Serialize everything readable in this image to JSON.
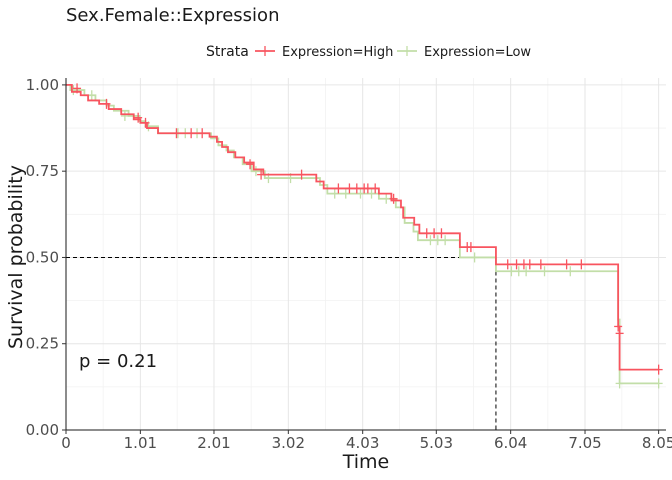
{
  "chart_data": {
    "type": "line",
    "subtype": "kaplan-meier step",
    "title": "Sex.Female::Expression",
    "xlabel": "Time",
    "ylabel": "Survival probability",
    "xlim": [
      0,
      8.15
    ],
    "ylim": [
      0,
      1.02
    ],
    "x_ticks": [
      0,
      1.01,
      2.01,
      3.02,
      4.03,
      5.03,
      6.04,
      7.05,
      8.05
    ],
    "x_tick_labels": [
      "0",
      "1.01",
      "2.01",
      "3.02",
      "4.03",
      "5.03",
      "6.04",
      "7.05",
      "8.05"
    ],
    "y_ticks": [
      0,
      0.25,
      0.5,
      0.75,
      1.0
    ],
    "y_tick_labels": [
      "0.00",
      "0.25",
      "0.50",
      "0.75",
      "1.00"
    ],
    "grid": true,
    "legend": {
      "title": "Strata",
      "position": "top"
    },
    "annotation": "p = 0.21",
    "median_reference": {
      "y": 0.5,
      "x": 5.84
    },
    "series": [
      {
        "name": "Expression=High",
        "color": "#f8545f",
        "steps": [
          [
            0,
            1.0
          ],
          [
            0.08,
            0.98
          ],
          [
            0.2,
            0.97
          ],
          [
            0.3,
            0.955
          ],
          [
            0.45,
            0.945
          ],
          [
            0.58,
            0.93
          ],
          [
            0.75,
            0.915
          ],
          [
            0.92,
            0.9
          ],
          [
            1.01,
            0.89
          ],
          [
            1.1,
            0.875
          ],
          [
            1.25,
            0.86
          ],
          [
            1.95,
            0.85
          ],
          [
            2.05,
            0.835
          ],
          [
            2.12,
            0.82
          ],
          [
            2.2,
            0.805
          ],
          [
            2.3,
            0.79
          ],
          [
            2.42,
            0.775
          ],
          [
            2.55,
            0.755
          ],
          [
            2.68,
            0.74
          ],
          [
            3.4,
            0.72
          ],
          [
            3.5,
            0.7
          ],
          [
            4.25,
            0.685
          ],
          [
            4.42,
            0.665
          ],
          [
            4.55,
            0.645
          ],
          [
            4.58,
            0.615
          ],
          [
            4.73,
            0.595
          ],
          [
            4.8,
            0.57
          ],
          [
            5.35,
            0.53
          ],
          [
            5.84,
            0.48
          ],
          [
            7.5,
            0.3
          ],
          [
            7.52,
            0.175
          ],
          [
            8.05,
            0.175
          ]
        ],
        "censor": [
          [
            0.15,
            0.99
          ],
          [
            0.55,
            0.945
          ],
          [
            0.98,
            0.905
          ],
          [
            1.08,
            0.89
          ],
          [
            1.5,
            0.86
          ],
          [
            1.7,
            0.86
          ],
          [
            1.85,
            0.86
          ],
          [
            2.5,
            0.77
          ],
          [
            2.65,
            0.74
          ],
          [
            3.2,
            0.74
          ],
          [
            3.7,
            0.7
          ],
          [
            3.85,
            0.7
          ],
          [
            3.95,
            0.7
          ],
          [
            4.05,
            0.7
          ],
          [
            4.1,
            0.7
          ],
          [
            4.2,
            0.7
          ],
          [
            4.45,
            0.67
          ],
          [
            4.9,
            0.57
          ],
          [
            5.0,
            0.57
          ],
          [
            5.1,
            0.57
          ],
          [
            5.45,
            0.53
          ],
          [
            5.5,
            0.53
          ],
          [
            6.0,
            0.48
          ],
          [
            6.12,
            0.48
          ],
          [
            6.22,
            0.48
          ],
          [
            6.3,
            0.48
          ],
          [
            6.45,
            0.48
          ],
          [
            6.8,
            0.48
          ],
          [
            7.0,
            0.48
          ],
          [
            7.5,
            0.3
          ],
          [
            7.52,
            0.28
          ],
          [
            8.05,
            0.175
          ]
        ]
      },
      {
        "name": "Expression=Low",
        "color": "#c2dea8",
        "steps": [
          [
            0,
            1.0
          ],
          [
            0.06,
            0.985
          ],
          [
            0.25,
            0.97
          ],
          [
            0.4,
            0.955
          ],
          [
            0.55,
            0.94
          ],
          [
            0.65,
            0.925
          ],
          [
            0.85,
            0.91
          ],
          [
            1.0,
            0.895
          ],
          [
            1.08,
            0.88
          ],
          [
            1.25,
            0.86
          ],
          [
            1.97,
            0.845
          ],
          [
            2.07,
            0.825
          ],
          [
            2.18,
            0.81
          ],
          [
            2.28,
            0.79
          ],
          [
            2.4,
            0.77
          ],
          [
            2.52,
            0.75
          ],
          [
            2.7,
            0.73
          ],
          [
            3.45,
            0.71
          ],
          [
            3.55,
            0.685
          ],
          [
            4.25,
            0.67
          ],
          [
            4.48,
            0.645
          ],
          [
            4.6,
            0.6
          ],
          [
            4.72,
            0.575
          ],
          [
            4.78,
            0.55
          ],
          [
            5.35,
            0.5
          ],
          [
            5.84,
            0.46
          ],
          [
            7.5,
            0.32
          ],
          [
            7.52,
            0.135
          ],
          [
            8.05,
            0.135
          ]
        ],
        "censor": [
          [
            0.1,
            0.985
          ],
          [
            0.35,
            0.97
          ],
          [
            0.8,
            0.91
          ],
          [
            1.12,
            0.88
          ],
          [
            1.52,
            0.86
          ],
          [
            1.62,
            0.86
          ],
          [
            1.78,
            0.86
          ],
          [
            2.58,
            0.75
          ],
          [
            2.75,
            0.73
          ],
          [
            3.05,
            0.73
          ],
          [
            3.65,
            0.685
          ],
          [
            3.8,
            0.685
          ],
          [
            4.0,
            0.685
          ],
          [
            4.15,
            0.685
          ],
          [
            4.35,
            0.67
          ],
          [
            4.95,
            0.55
          ],
          [
            5.05,
            0.55
          ],
          [
            5.15,
            0.55
          ],
          [
            5.55,
            0.5
          ],
          [
            6.05,
            0.46
          ],
          [
            6.15,
            0.46
          ],
          [
            6.25,
            0.46
          ],
          [
            6.5,
            0.46
          ],
          [
            6.85,
            0.46
          ],
          [
            7.52,
            0.135
          ],
          [
            8.05,
            0.135
          ]
        ]
      }
    ]
  }
}
